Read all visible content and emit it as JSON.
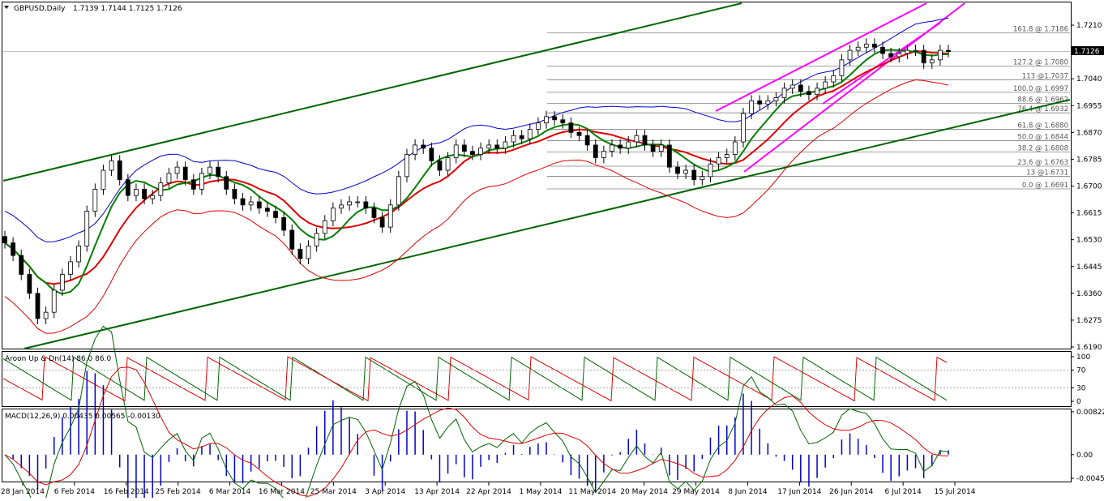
{
  "header": {
    "symbol": "GBPUSD,Daily",
    "ohlc": "1.7139 1.7144 1.7125 1.7126"
  },
  "price_tag": "1.7126",
  "aroon_label": "Aroon Up & Dn(14) 86.0 86.0",
  "macd_label": "MACD(12,26,9) 0.00435 0.00565 -0.00130",
  "colors": {
    "bull_candle": "#ffffff",
    "bear_candle": "#000000",
    "channel": "#006400",
    "bollinger_mid": "#008000",
    "bollinger_upper": "#0000cd",
    "bollinger_lower": "#e00000",
    "ma_red": "#e00000",
    "ma_yellow": "#e8e800",
    "pink_channel": "#ff00ff",
    "fib_line": "#808080",
    "aroon_up": "#006400",
    "aroon_down": "#e00000",
    "macd_line": "#006400",
    "signal_line": "#e00000",
    "macd_hist": "#0000cd"
  },
  "chart_data": [
    {
      "type": "candlestick",
      "title": "GBPUSD,Daily",
      "ylim": [
        1.619,
        1.724
      ],
      "y_ticks": [
        "1.7210",
        "1.7125",
        "1.7040",
        "1.6955",
        "1.6870",
        "1.6785",
        "1.6700",
        "1.6615",
        "1.6530",
        "1.6445",
        "1.6360",
        "1.6275",
        "1.6190"
      ],
      "x_ticks": [
        "28 Jan 2014",
        "6 Feb 2014",
        "16 Feb 2014",
        "25 Feb 2014",
        "6 Mar 2014",
        "16 Mar 2014",
        "25 Mar 2014",
        "3 Apr 2014",
        "13 Apr 2014",
        "22 Apr 2014",
        "1 May 2014",
        "11 May 2014",
        "20 May 2014",
        "29 May 2014",
        "8 Jun 2014",
        "17 Jun 2014",
        "26 Jun 2014",
        "6 Jul 2014",
        "15 Jul 2014"
      ],
      "close_path": [
        1.652,
        1.648,
        1.642,
        1.636,
        1.628,
        1.63,
        1.637,
        1.642,
        1.646,
        1.651,
        1.662,
        1.669,
        1.675,
        1.678,
        1.672,
        1.667,
        1.669,
        1.666,
        1.667,
        1.671,
        1.674,
        1.676,
        1.672,
        1.669,
        1.674,
        1.676,
        1.673,
        1.669,
        1.666,
        1.664,
        1.665,
        1.663,
        1.662,
        1.66,
        1.656,
        1.65,
        1.647,
        1.651,
        1.655,
        1.659,
        1.663,
        1.664,
        1.665,
        1.665,
        1.663,
        1.66,
        1.657,
        1.664,
        1.673,
        1.68,
        1.683,
        1.682,
        1.678,
        1.675,
        1.679,
        1.683,
        1.681,
        1.68,
        1.682,
        1.683,
        1.682,
        1.684,
        1.686,
        1.685,
        1.688,
        1.69,
        1.692,
        1.691,
        1.69,
        1.687,
        1.686,
        1.683,
        1.679,
        1.681,
        1.683,
        1.682,
        1.684,
        1.686,
        1.683,
        1.681,
        1.683,
        1.676,
        1.674,
        1.675,
        1.672,
        1.673,
        1.677,
        1.679,
        1.68,
        1.684,
        1.693,
        1.697,
        1.696,
        1.697,
        1.698,
        1.701,
        1.702,
        1.7,
        1.699,
        1.701,
        1.703,
        1.705,
        1.71,
        1.713,
        1.714,
        1.715,
        1.714,
        1.712,
        1.711,
        1.712,
        1.713,
        1.713,
        1.709,
        1.71,
        1.713,
        1.7126
      ],
      "fibonacci_levels": [
        {
          "label": "161.8 @ 1.7186",
          "value": 1.7186
        },
        {
          "label": "127.2 @ 1.7080",
          "value": 1.708
        },
        {
          "label": "113 @1.7037",
          "value": 1.7037
        },
        {
          "label": "100.0 @ 1.6997",
          "value": 1.6997
        },
        {
          "label": "88.6 @ 1.6962",
          "value": 1.6962
        },
        {
          "label": "76.4 @ 1.6932",
          "value": 1.6932
        },
        {
          "label": "61.8 @ 1.6880",
          "value": 1.688
        },
        {
          "label": "50.0 @ 1.6844",
          "value": 1.6844
        },
        {
          "label": "38.2 @ 1.6808",
          "value": 1.6808
        },
        {
          "label": "23.6 @ 1.6763",
          "value": 1.6763
        },
        {
          "label": "13 @1.6731",
          "value": 1.6731
        },
        {
          "label": "0.0 @ 1.6691",
          "value": 1.6691
        }
      ],
      "last_price": 1.7126
    },
    {
      "type": "line",
      "title": "Aroon Up & Dn(14) 86.0 86.0",
      "ylim": [
        0,
        100
      ],
      "y_ticks": [
        "100",
        "70",
        "30",
        "0"
      ],
      "series": [
        {
          "values": [
            86
          ]
        },
        {
          "values": [
            86
          ]
        }
      ]
    },
    {
      "type": "bar",
      "title": "MACD(12,26,9) 0.00435 0.00565 -0.00130",
      "ylim": [
        -0.00454,
        0.00822
      ],
      "y_ticks": [
        "0.00822",
        "0.00",
        "-0.00454"
      ],
      "series": [
        {
          "values": [
            0.00435
          ]
        },
        {
          "values": [
            0.00565
          ]
        },
        {
          "values": [
            -0.0013
          ]
        }
      ]
    }
  ]
}
